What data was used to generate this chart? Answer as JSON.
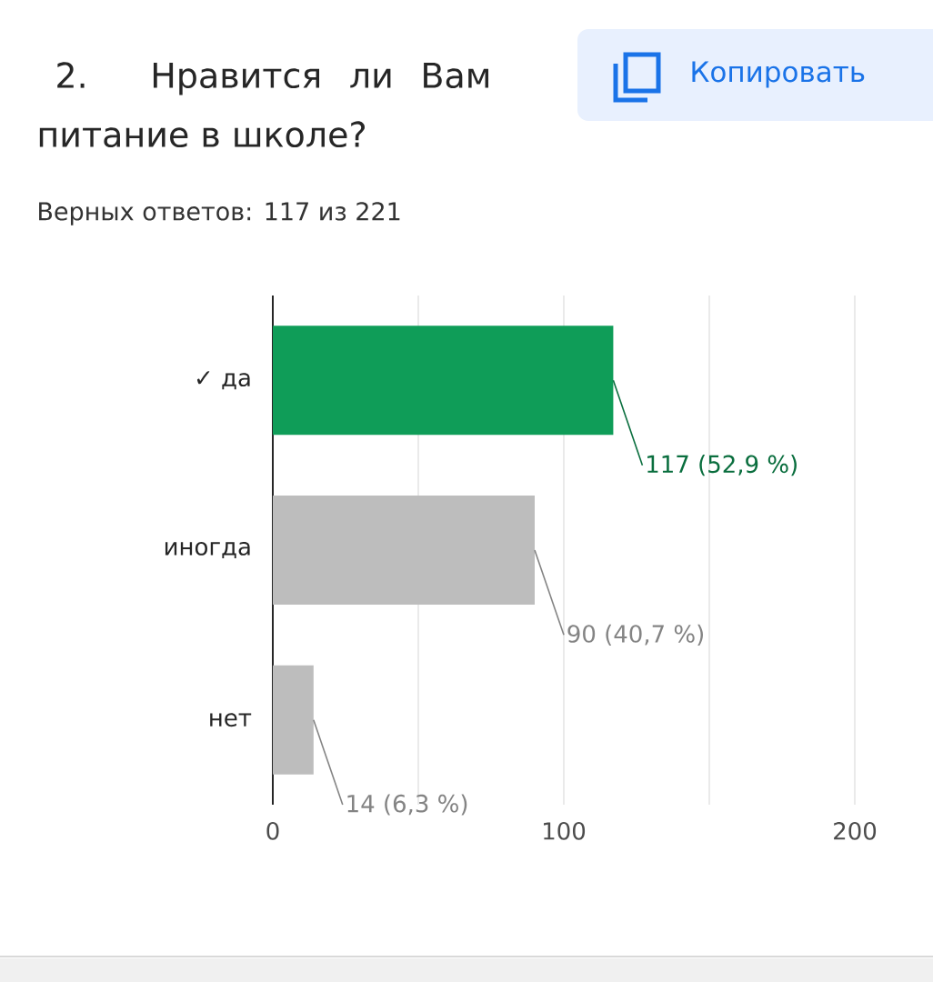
{
  "chart_data": {
    "type": "bar",
    "orientation": "horizontal",
    "title": "2. Нравится ли Вам питание в школе?",
    "subtitle": "Верных ответов: 117 из 221",
    "annotations": [
      "Копировать"
    ],
    "categories": [
      "✓ да",
      "иногда",
      "нет"
    ],
    "values": [
      117,
      90,
      14
    ],
    "colors": [
      "#0f9d58",
      "#bdbdbd",
      "#bdbdbd"
    ],
    "value_labels": [
      "117 (52,9 %)",
      "90 (40,7 %)",
      "14 (6,3 %)"
    ],
    "xlim": [
      0,
      200
    ],
    "xticks": [
      0,
      {
        "value": 50,
        "label": null
      },
      100,
      {
        "value": 150,
        "label": null
      },
      200
    ],
    "grid": "x"
  }
}
